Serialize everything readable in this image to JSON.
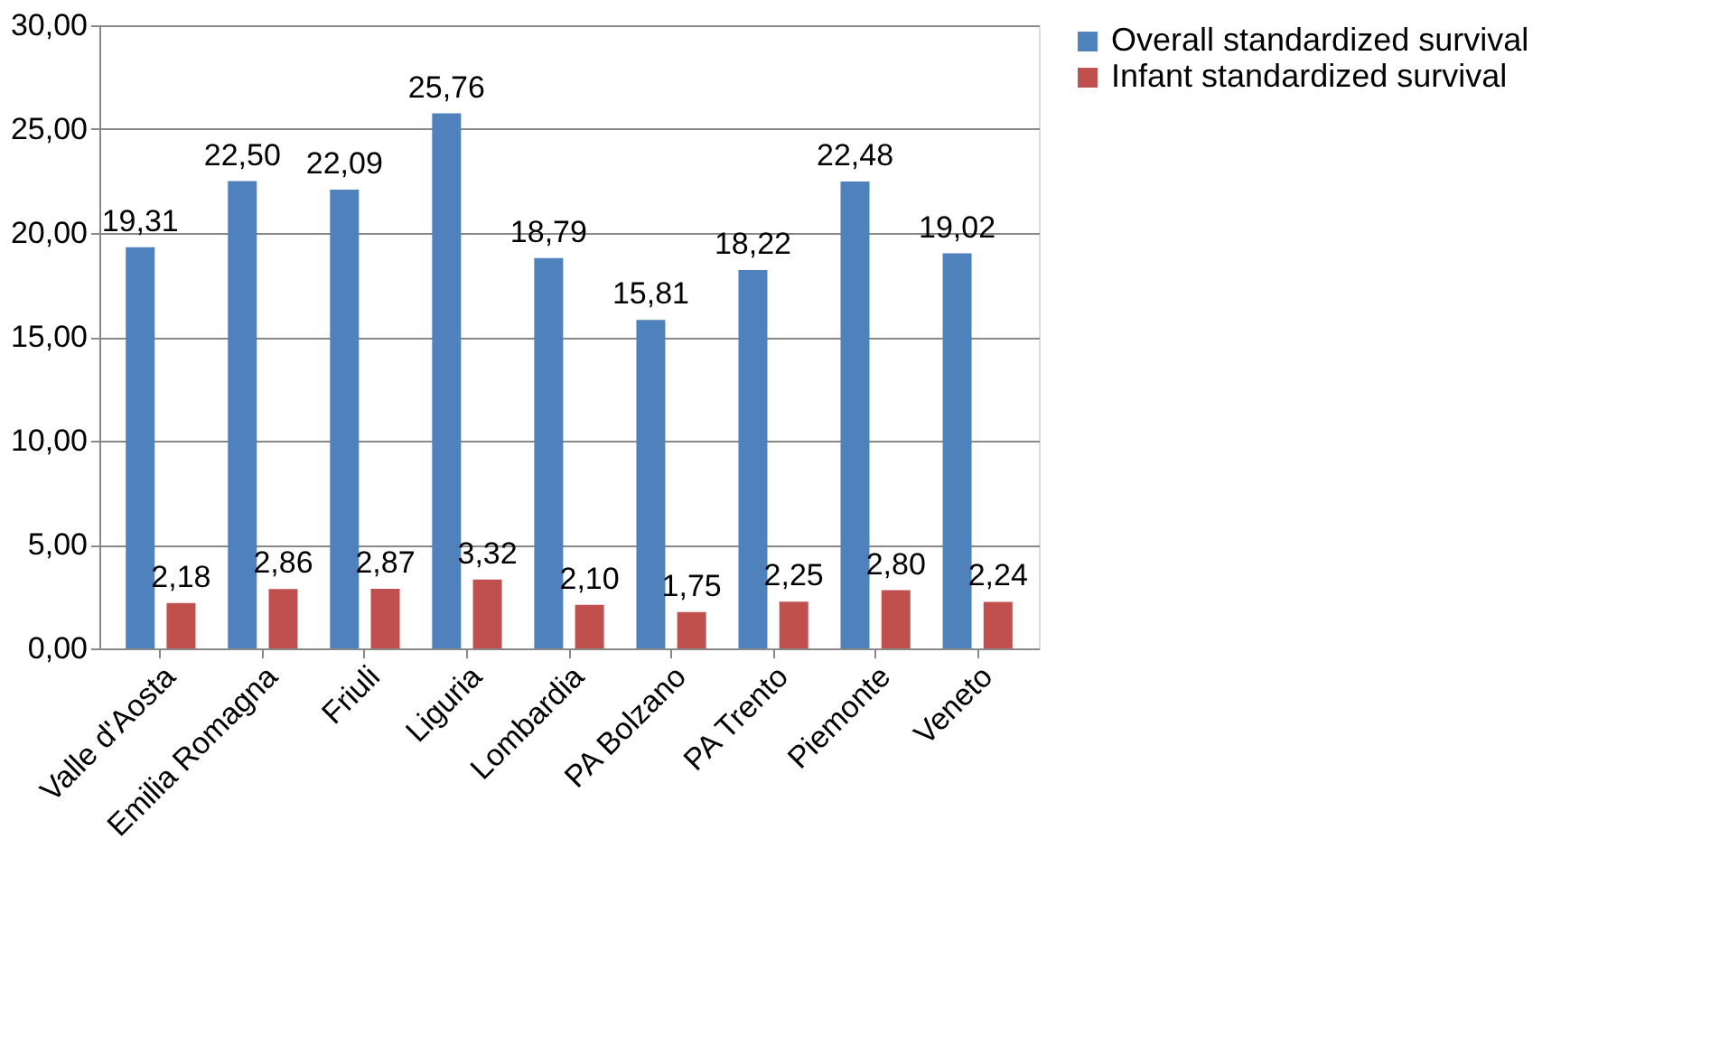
{
  "chart_data": {
    "type": "bar",
    "categories": [
      "Valle d'Aosta",
      "Emilia Romagna",
      "Friuli",
      "Liguria",
      "Lombardia",
      "PA Bolzano",
      "PA Trento",
      "Piemonte",
      "Veneto"
    ],
    "series": [
      {
        "name": "Overall standardized survival",
        "color": "#4f81bd",
        "values": [
          19.31,
          22.5,
          22.09,
          25.76,
          18.79,
          15.81,
          18.22,
          22.48,
          19.02
        ],
        "value_labels": [
          "19,31",
          "22,50",
          "22,09",
          "25,76",
          "18,79",
          "15,81",
          "18,22",
          "22,48",
          "19,02"
        ]
      },
      {
        "name": "Infant standardized survival",
        "color": "#c0504d",
        "values": [
          2.18,
          2.86,
          2.87,
          3.32,
          2.1,
          1.75,
          2.25,
          2.8,
          2.24
        ],
        "value_labels": [
          "2,18",
          "2,86",
          "2,87",
          "3,32",
          "2,10",
          "1,75",
          "2,25",
          "2,80",
          "2,24"
        ]
      }
    ],
    "ylim": [
      0,
      30
    ],
    "yticks": [
      {
        "value": 0,
        "label": "0,00"
      },
      {
        "value": 5,
        "label": "5,00"
      },
      {
        "value": 10,
        "label": "10,00"
      },
      {
        "value": 15,
        "label": "15,00"
      },
      {
        "value": 20,
        "label": "20,00"
      },
      {
        "value": 25,
        "label": "25,00"
      },
      {
        "value": 30,
        "label": "30,00"
      }
    ],
    "grid": "y",
    "legend": "right"
  }
}
